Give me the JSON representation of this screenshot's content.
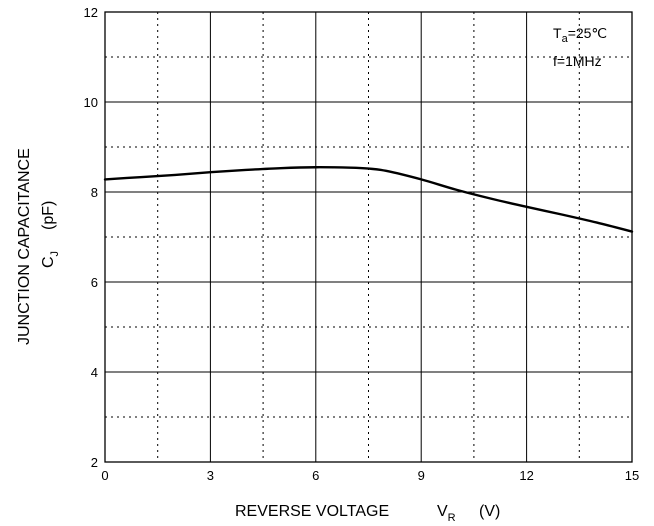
{
  "chart_data": {
    "type": "line",
    "title": "",
    "xlabel": "REVERSE VOLTAGE",
    "xlabel_symbol": "V",
    "xlabel_symbol_sub": "R",
    "xlabel_unit": "(V)",
    "ylabel": "JUNCTION CAPACITANCE",
    "ylabel_symbol": "C",
    "ylabel_symbol_sub": "J",
    "ylabel_unit": "(pF)",
    "xlim": [
      0,
      15
    ],
    "ylim": [
      2,
      12
    ],
    "x_ticks": [
      "0",
      "3",
      "6",
      "9",
      "12",
      "15"
    ],
    "y_ticks": [
      "2",
      "4",
      "6",
      "8",
      "10",
      "12"
    ],
    "grid": true,
    "annotations": {
      "ta_symbol": "T",
      "ta_sub": "a",
      "ta_value": "=25℃",
      "freq": "f=1MHz"
    },
    "series": [
      {
        "x": [
          0,
          1,
          2,
          3,
          4,
          5,
          6,
          7,
          7.5,
          8,
          9,
          10,
          11,
          12,
          13,
          14,
          15
        ],
        "y": [
          8.28,
          8.33,
          8.38,
          8.44,
          8.49,
          8.53,
          8.55,
          8.54,
          8.52,
          8.47,
          8.28,
          8.05,
          7.85,
          7.67,
          7.5,
          7.32,
          7.12
        ]
      }
    ]
  }
}
